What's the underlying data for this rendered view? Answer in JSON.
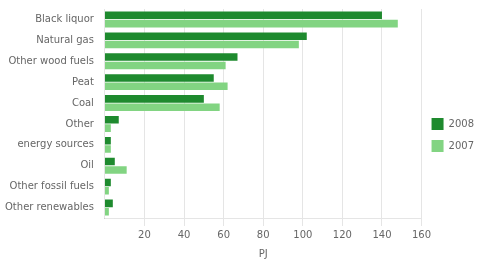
{
  "chart_data": {
    "type": "bar",
    "orientation": "horizontal",
    "categories": [
      "Other renewables",
      "Other fossil fuels",
      "Oil",
      "energy sources",
      "Other",
      "Coal",
      "Peat",
      "Other wood fuels",
      "Natural gas",
      "Black liquor"
    ],
    "series": [
      {
        "name": "2008",
        "color": "#1e8a2e",
        "values": [
          4,
          3,
          5,
          3,
          7,
          50,
          55,
          67,
          102,
          140
        ]
      },
      {
        "name": "2007",
        "color": "#82d482",
        "values": [
          2,
          2,
          11,
          3,
          3,
          58,
          62,
          61,
          98,
          148
        ]
      }
    ],
    "xlabel": "PJ",
    "xlim": [
      0,
      160
    ],
    "xticks": [
      20,
      40,
      60,
      80,
      100,
      120,
      140,
      160
    ],
    "grid": true,
    "legend": "right"
  }
}
